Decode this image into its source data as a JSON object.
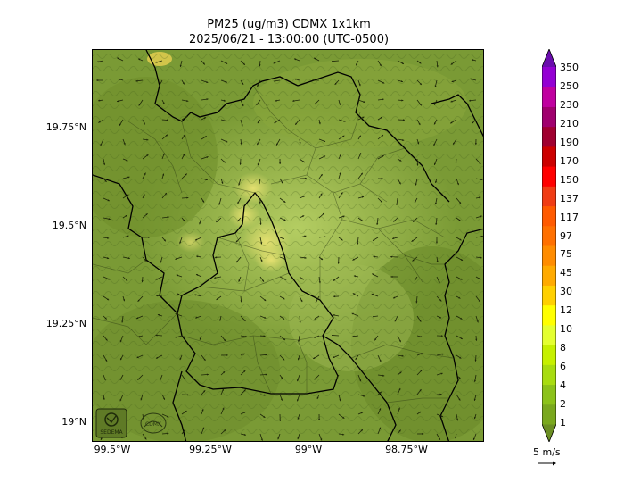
{
  "title": {
    "line1": "PM25 (ug/m3) CDMX 1x1km",
    "line2": "2025/06/21 - 13:00:00 (UTC-0500)"
  },
  "axes": {
    "y_ticks": [
      "19.75°N",
      "19.5°N",
      "19.25°N",
      "19°N"
    ],
    "x_ticks": [
      "99.5°W",
      "99.25°W",
      "99°W",
      "98.75°W"
    ]
  },
  "colorbar": {
    "levels": [
      "1",
      "2",
      "4",
      "6",
      "8",
      "10",
      "12",
      "30",
      "45",
      "75",
      "97",
      "117",
      "137",
      "150",
      "170",
      "190",
      "210",
      "230",
      "250",
      "350"
    ],
    "colors": [
      "#6b8e23",
      "#7aa81e",
      "#8cc21a",
      "#a8dc10",
      "#c6f000",
      "#e4ff30",
      "#ffff00",
      "#ffd000",
      "#ffaa00",
      "#ff8c00",
      "#ff7000",
      "#ff5a00",
      "#f03c14",
      "#ff0000",
      "#cc0000",
      "#a00030",
      "#a0006e",
      "#c000a0",
      "#9400d3",
      "#6a0dad"
    ]
  },
  "logos": [
    "SEDEMA",
    "CDMX"
  ],
  "wind": {
    "unit_label": "5 m/s"
  }
}
